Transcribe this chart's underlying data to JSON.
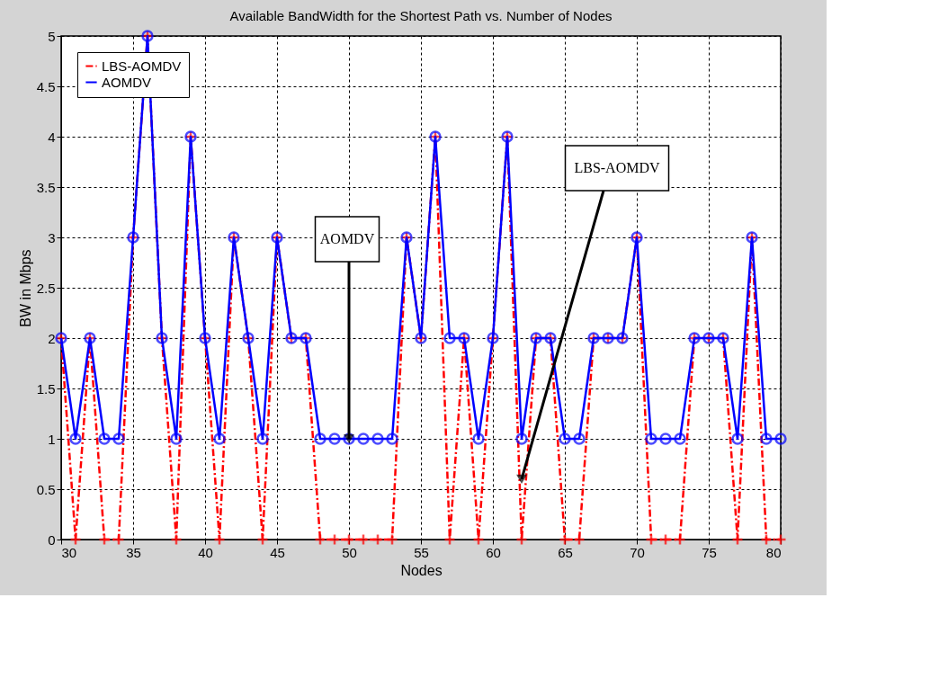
{
  "chart_data": {
    "type": "line",
    "title": "Available BandWidth for the Shortest Path vs. Number of Nodes",
    "xlabel": "Nodes",
    "ylabel": "BW in Mbps",
    "x": [
      30,
      31,
      32,
      33,
      34,
      35,
      36,
      37,
      38,
      39,
      40,
      41,
      42,
      43,
      44,
      45,
      46,
      47,
      48,
      49,
      50,
      51,
      52,
      53,
      54,
      55,
      56,
      57,
      58,
      59,
      60,
      61,
      62,
      63,
      64,
      65,
      66,
      67,
      68,
      69,
      70,
      71,
      72,
      73,
      74,
      75,
      76,
      77,
      78,
      79,
      80
    ],
    "series": [
      {
        "name": "LBS-AOMDV",
        "color": "#ff0000",
        "marker": "cross",
        "line_style": "dashed",
        "values": [
          2,
          0,
          2,
          0,
          0,
          3,
          5,
          2,
          0,
          4,
          2,
          0,
          3,
          2,
          0,
          3,
          2,
          2,
          0,
          0,
          0,
          0,
          0,
          0,
          3,
          2,
          4,
          0,
          2,
          0,
          2,
          4,
          0,
          2,
          2,
          0,
          0,
          2,
          2,
          2,
          3,
          0,
          0,
          0,
          2,
          2,
          2,
          0,
          3,
          0,
          0
        ]
      },
      {
        "name": "AOMDV",
        "color": "#0000ff",
        "marker": "circle",
        "line_style": "solid",
        "values": [
          2,
          1,
          2,
          1,
          1,
          3,
          5,
          2,
          1,
          4,
          2,
          1,
          3,
          2,
          1,
          3,
          2,
          2,
          1,
          1,
          1,
          1,
          1,
          1,
          3,
          2,
          4,
          2,
          2,
          1,
          2,
          4,
          1,
          2,
          2,
          1,
          1,
          2,
          2,
          2,
          3,
          1,
          1,
          1,
          2,
          2,
          2,
          1,
          3,
          1,
          1
        ]
      }
    ],
    "xlim": [
      30,
      80
    ],
    "xticks": [
      30,
      35,
      40,
      45,
      50,
      55,
      60,
      65,
      70,
      75,
      80
    ],
    "ylim": [
      0,
      5
    ],
    "yticks": [
      0,
      0.5,
      1,
      1.5,
      2,
      2.5,
      3,
      3.5,
      4,
      4.5,
      5
    ],
    "grid": true,
    "legend": "top left",
    "annotations": [
      {
        "text": "AOMDV",
        "x": 50,
        "y": 1
      },
      {
        "text": "LBS-AOMDV",
        "x": 62,
        "y": 0.6
      }
    ]
  }
}
